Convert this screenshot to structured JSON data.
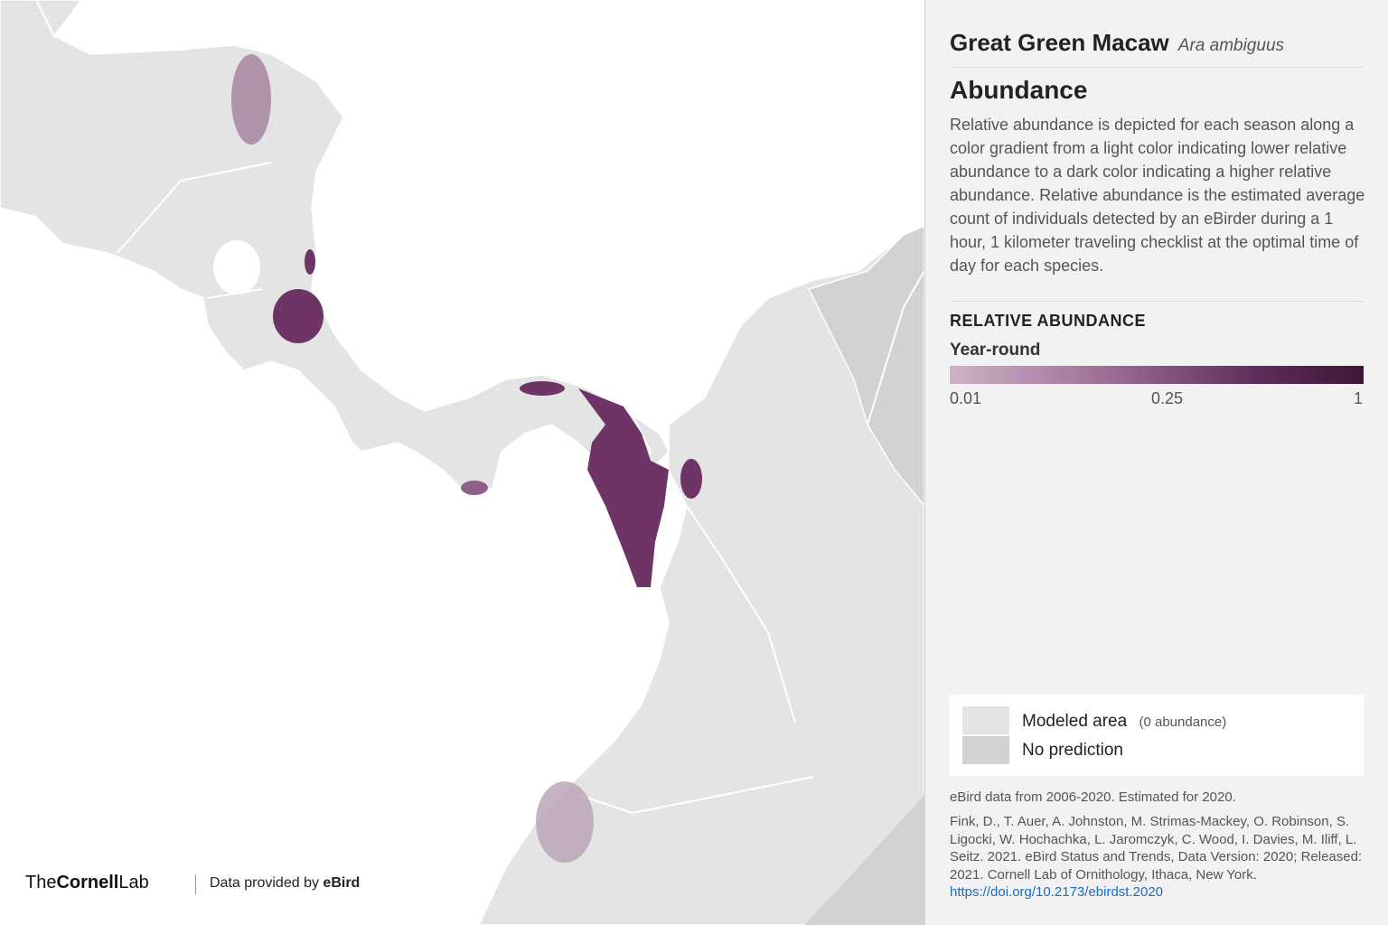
{
  "header": {
    "title": "Great Green Macaw",
    "scientific_name": "Ara ambiguus"
  },
  "section": {
    "title": "Abundance",
    "description": "Relative abundance is depicted for each season along a color gradient from a light color indicating lower relative abundance to a dark color indicating a higher relative abundance. Relative abundance is the estimated average count of individuals detected by an eBirder during a 1 hour, 1 kilometer traveling checklist at the optimal time of day for each species."
  },
  "legend": {
    "title": "RELATIVE ABUNDANCE",
    "season": "Year-round",
    "ticks": [
      0.01,
      0.25,
      1
    ]
  },
  "key": {
    "modeled": "Modeled area",
    "modeled_note": "(0 abundance)",
    "no_prediction": "No prediction"
  },
  "footer": {
    "data_note": "eBird data from 2006-2020. Estimated for 2020.",
    "citation": "Fink, D., T. Auer, A. Johnston, M. Strimas-Mackey, O. Robinson, S. Ligocki, W. Hochachka, L. Jaromczyk, C. Wood, I. Davies, M. Iliff, L. Seitz. 2021. eBird Status and Trends, Data Version: 2020; Released: 2021. Cornell Lab of Ornithology, Ithaca, New York.",
    "link": "https://doi.org/10.2173/ebirdst.2020"
  },
  "branding": {
    "org_prefix": "The",
    "org_name": "Cornell",
    "org_suffix": "Lab",
    "provider_prefix": "Data provided by",
    "provider": "eBird"
  }
}
